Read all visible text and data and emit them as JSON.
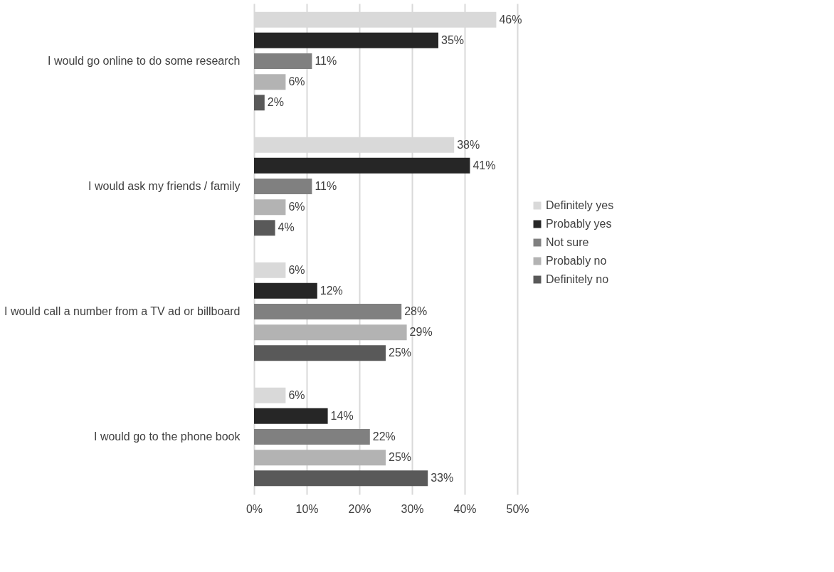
{
  "chart_data": {
    "type": "bar",
    "orientation": "horizontal",
    "categories": [
      "I would go online to do some research",
      "I would ask my friends / family",
      "I would call a number from a TV ad or billboard",
      "I would go to the phone book"
    ],
    "series": [
      {
        "name": "Definitely yes",
        "color": "#d9d9d9",
        "values": [
          46,
          38,
          6,
          6
        ],
        "value_labels": [
          "46%",
          "38%",
          "6%",
          "6%"
        ]
      },
      {
        "name": "Probably yes",
        "color": "#262626",
        "values": [
          35,
          41,
          12,
          14
        ],
        "value_labels": [
          "35%",
          "41%",
          "12%",
          "14%"
        ]
      },
      {
        "name": "Not sure",
        "color": "#808080",
        "values": [
          11,
          11,
          28,
          22
        ],
        "value_labels": [
          "11%",
          "11%",
          "28%",
          "22%"
        ]
      },
      {
        "name": "Probably no",
        "color": "#b3b3b3",
        "values": [
          6,
          6,
          29,
          25
        ],
        "value_labels": [
          "6%",
          "6%",
          "29%",
          "25%"
        ]
      },
      {
        "name": "Definitely no",
        "color": "#595959",
        "values": [
          2,
          4,
          25,
          33
        ],
        "value_labels": [
          "2%",
          "4%",
          "25%",
          "33%"
        ]
      }
    ],
    "xlim": [
      0,
      50
    ],
    "xticks": [
      {
        "value": 0,
        "label": "0%"
      },
      {
        "value": 10,
        "label": "10%"
      },
      {
        "value": 20,
        "label": "20%"
      },
      {
        "value": 30,
        "label": "30%"
      },
      {
        "value": 40,
        "label": "40%"
      },
      {
        "value": 50,
        "label": "50%"
      }
    ],
    "grid": "x",
    "legend": "right"
  }
}
